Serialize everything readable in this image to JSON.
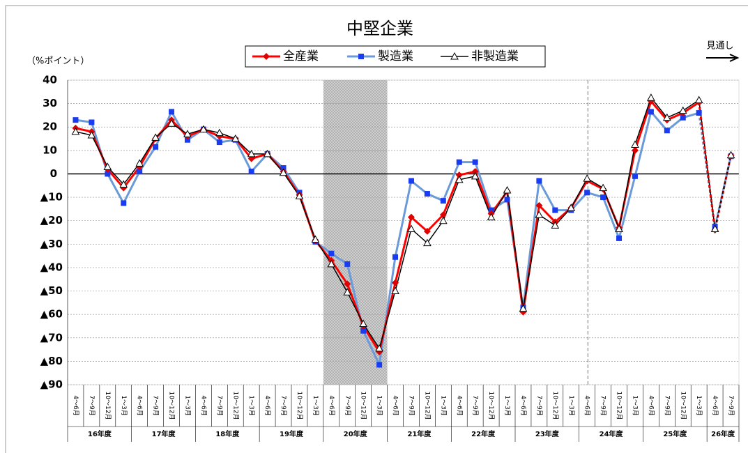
{
  "chart_data": {
    "type": "line",
    "title": "中堅企業",
    "y_label": "（%ポイント）",
    "annotation": "見通し",
    "categories": [
      "4～6月",
      "7～9月",
      "10～12月",
      "1～3月",
      "4～6月",
      "7～9月",
      "10～12月",
      "1～3月",
      "4～6月",
      "7～9月",
      "10～12月",
      "1～3月",
      "4～6月",
      "7～9月",
      "10～12月",
      "1～3月",
      "4～6月",
      "7～9月",
      "10～12月",
      "1～3月",
      "4～6月",
      "7～9月",
      "10～12月",
      "1～3月",
      "4～6月",
      "7～9月",
      "10～12月",
      "1～3月",
      "4～6月",
      "7～9月",
      "10～12月",
      "1～3月",
      "4～6月",
      "7～9月",
      "10～12月",
      "1～3月",
      "4～6月",
      "7～9月",
      "10～12月",
      "1～3月",
      "4～6月",
      "7～9月"
    ],
    "groups": [
      "16年度",
      "17年度",
      "18年度",
      "19年度",
      "20年度",
      "21年度",
      "22年度",
      "23年度",
      "24年度",
      "25年度",
      "26年度"
    ],
    "series": [
      {
        "name": "全産業",
        "color": "#ff0000",
        "marker_color": "#e00000",
        "marker": "diamond",
        "values": [
          19.5,
          18,
          2,
          -6,
          3,
          15,
          23,
          16,
          19,
          16,
          15,
          6.5,
          8.5,
          1,
          -9,
          -28.5,
          -37,
          -47,
          -65,
          -76,
          -46.5,
          -18.5,
          -24.5,
          -17.5,
          -0.5,
          1,
          -17,
          -7.5,
          -59,
          -13.5,
          -20.5,
          -14.5,
          -3,
          -6.5,
          -23,
          10,
          31,
          23,
          26,
          30.5,
          -24,
          8
        ]
      },
      {
        "name": "製造業",
        "color": "#6a9ad8",
        "marker_color": "#1a3cf0",
        "marker": "square",
        "values": [
          23,
          22,
          0,
          -12.5,
          1,
          11.5,
          26.5,
          14.5,
          19,
          13.5,
          14.5,
          1,
          8.5,
          2.5,
          -8,
          -29,
          -34,
          -38.5,
          -67,
          -81.5,
          -35.5,
          -3,
          -8.5,
          -11.5,
          5,
          5,
          -15.5,
          -11,
          -57,
          -3,
          -15.5,
          -15.5,
          -8,
          -10,
          -27.5,
          -1,
          26.5,
          18.5,
          24,
          26,
          -22.5,
          7.5
        ]
      },
      {
        "name": "非製造業",
        "color": "#000000",
        "marker_color": "#000000",
        "marker": "triangle",
        "values": [
          18,
          16.5,
          3,
          -4.5,
          4.5,
          15.5,
          21.5,
          17,
          19,
          17.5,
          15,
          8.5,
          8.5,
          0.5,
          -9.5,
          -28,
          -38.5,
          -50.5,
          -64,
          -74.5,
          -50,
          -23.5,
          -29.5,
          -20,
          -2.5,
          -1,
          -18.5,
          -7,
          -57.5,
          -17.5,
          -22,
          -14.5,
          -2,
          -6,
          -23.5,
          12.5,
          32.5,
          24,
          27,
          31.5,
          -23.5,
          8
        ]
      }
    ],
    "ylim": [
      -90,
      40
    ],
    "yticks": [
      40,
      30,
      20,
      10,
      0,
      {
        "value": -10,
        "label": "▲10"
      },
      {
        "value": -20,
        "label": "▲20"
      },
      {
        "value": -30,
        "label": "▲30"
      },
      {
        "value": -40,
        "label": "▲40"
      },
      {
        "value": -50,
        "label": "▲50"
      },
      {
        "value": -60,
        "label": "▲60"
      },
      {
        "value": -70,
        "label": "▲70"
      },
      {
        "value": -80,
        "label": "▲80"
      },
      {
        "value": -90,
        "label": "▲90"
      }
    ],
    "grid": true
  }
}
